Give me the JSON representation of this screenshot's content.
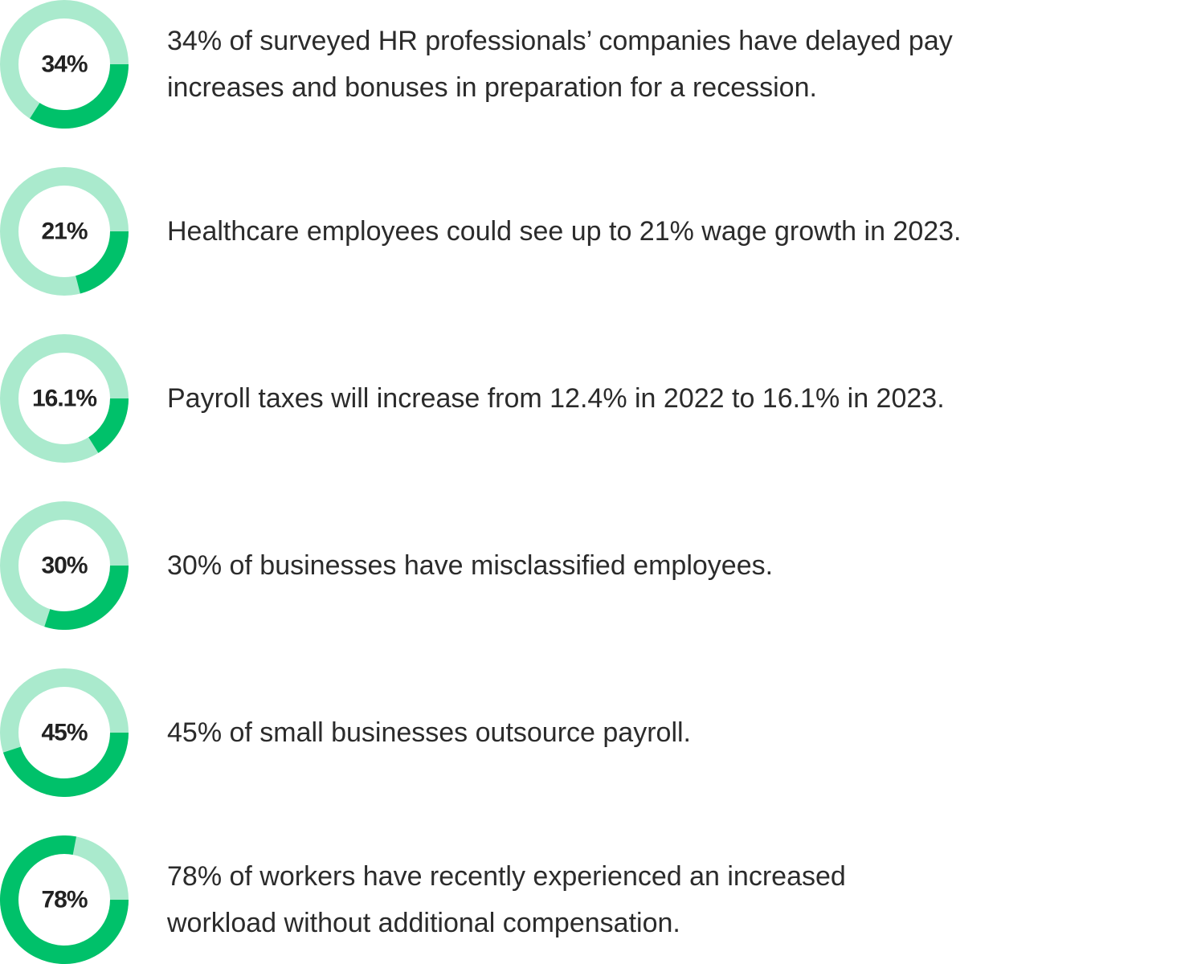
{
  "chart_data": [
    {
      "type": "donut",
      "value": 34,
      "value_label": "34%",
      "color": "#00c16a",
      "track_color": "#aaeacd",
      "text_lines": [
        "34% of surveyed HR professionals’ companies have delayed pay",
        "increases and bonuses in preparation for a recession."
      ]
    },
    {
      "type": "donut",
      "value": 21,
      "value_label": "21%",
      "color": "#00c16a",
      "track_color": "#aaeacd",
      "text_lines": [
        "Healthcare employees could see up to 21% wage growth in 2023."
      ]
    },
    {
      "type": "donut",
      "value": 16.1,
      "value_label": "16.1%",
      "color": "#00c16a",
      "track_color": "#aaeacd",
      "text_lines": [
        "Payroll taxes will increase from 12.4% in 2022 to 16.1% in 2023."
      ]
    },
    {
      "type": "donut",
      "value": 30,
      "value_label": "30%",
      "color": "#00c16a",
      "track_color": "#aaeacd",
      "text_lines": [
        "30% of businesses have misclassified employees."
      ]
    },
    {
      "type": "donut",
      "value": 45,
      "value_label": "45%",
      "color": "#00c16a",
      "track_color": "#aaeacd",
      "text_lines": [
        "45% of small businesses outsource payroll."
      ]
    },
    {
      "type": "donut",
      "value": 78,
      "value_label": "78%",
      "color": "#00c16a",
      "track_color": "#aaeacd",
      "text_lines": [
        "78% of workers have recently experienced an increased",
        "workload without additional compensation."
      ]
    }
  ]
}
